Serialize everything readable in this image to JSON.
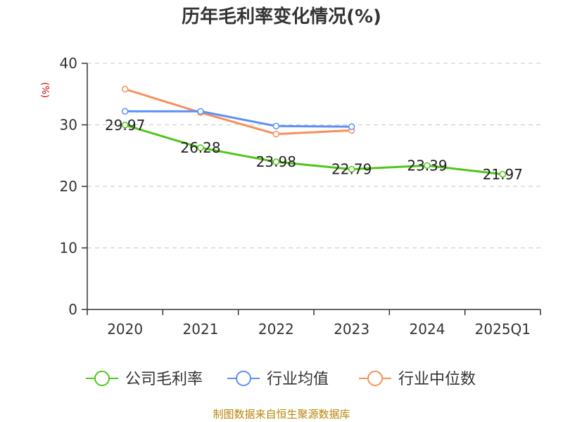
{
  "chart_data": {
    "type": "line",
    "title": "历年毛利率变化情况(%)",
    "ylabel": "(%)",
    "categories": [
      "2020",
      "2021",
      "2022",
      "2023",
      "2024",
      "2025Q1"
    ],
    "ylim": [
      0,
      40
    ],
    "yticks": [
      0,
      10,
      20,
      30,
      40
    ],
    "grid": true,
    "legend_position": "bottom",
    "series": [
      {
        "name": "公司毛利率",
        "color": "#52c41a",
        "values": [
          29.97,
          26.28,
          23.98,
          22.79,
          23.39,
          21.97
        ],
        "labels": [
          "29.97",
          "26.28",
          "23.98",
          "22.79",
          "23.39",
          "21.97"
        ]
      },
      {
        "name": "行业均值",
        "color": "#5b8ff9",
        "values": [
          32.2,
          32.2,
          29.8,
          29.7,
          null,
          null
        ]
      },
      {
        "name": "行业中位数",
        "color": "#f6905a",
        "values": [
          35.8,
          32.0,
          28.5,
          29.1,
          null,
          null
        ]
      }
    ]
  },
  "source": "制图数据来自恒生聚源数据库"
}
